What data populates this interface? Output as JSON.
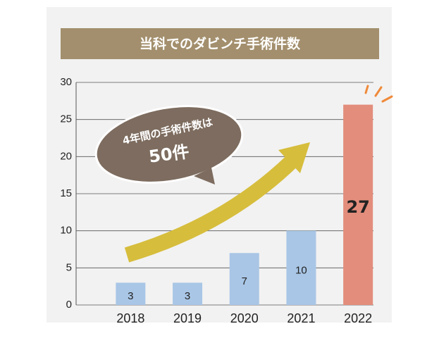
{
  "chart_data": {
    "type": "bar",
    "title": "当科でのダビンチ手術件数",
    "categories": [
      "2018",
      "2019",
      "2020",
      "2021",
      "2022"
    ],
    "values": [
      3,
      3,
      7,
      10,
      27
    ],
    "colors": [
      "#a9c6e6",
      "#a9c6e6",
      "#a9c6e6",
      "#a9c6e6",
      "#e38d7c"
    ],
    "ylim": [
      0,
      30
    ],
    "yticks": [
      0,
      5,
      10,
      15,
      20,
      25,
      30
    ],
    "grid": true,
    "annotations": [
      "4年間の手術件数は",
      "50件"
    ]
  }
}
